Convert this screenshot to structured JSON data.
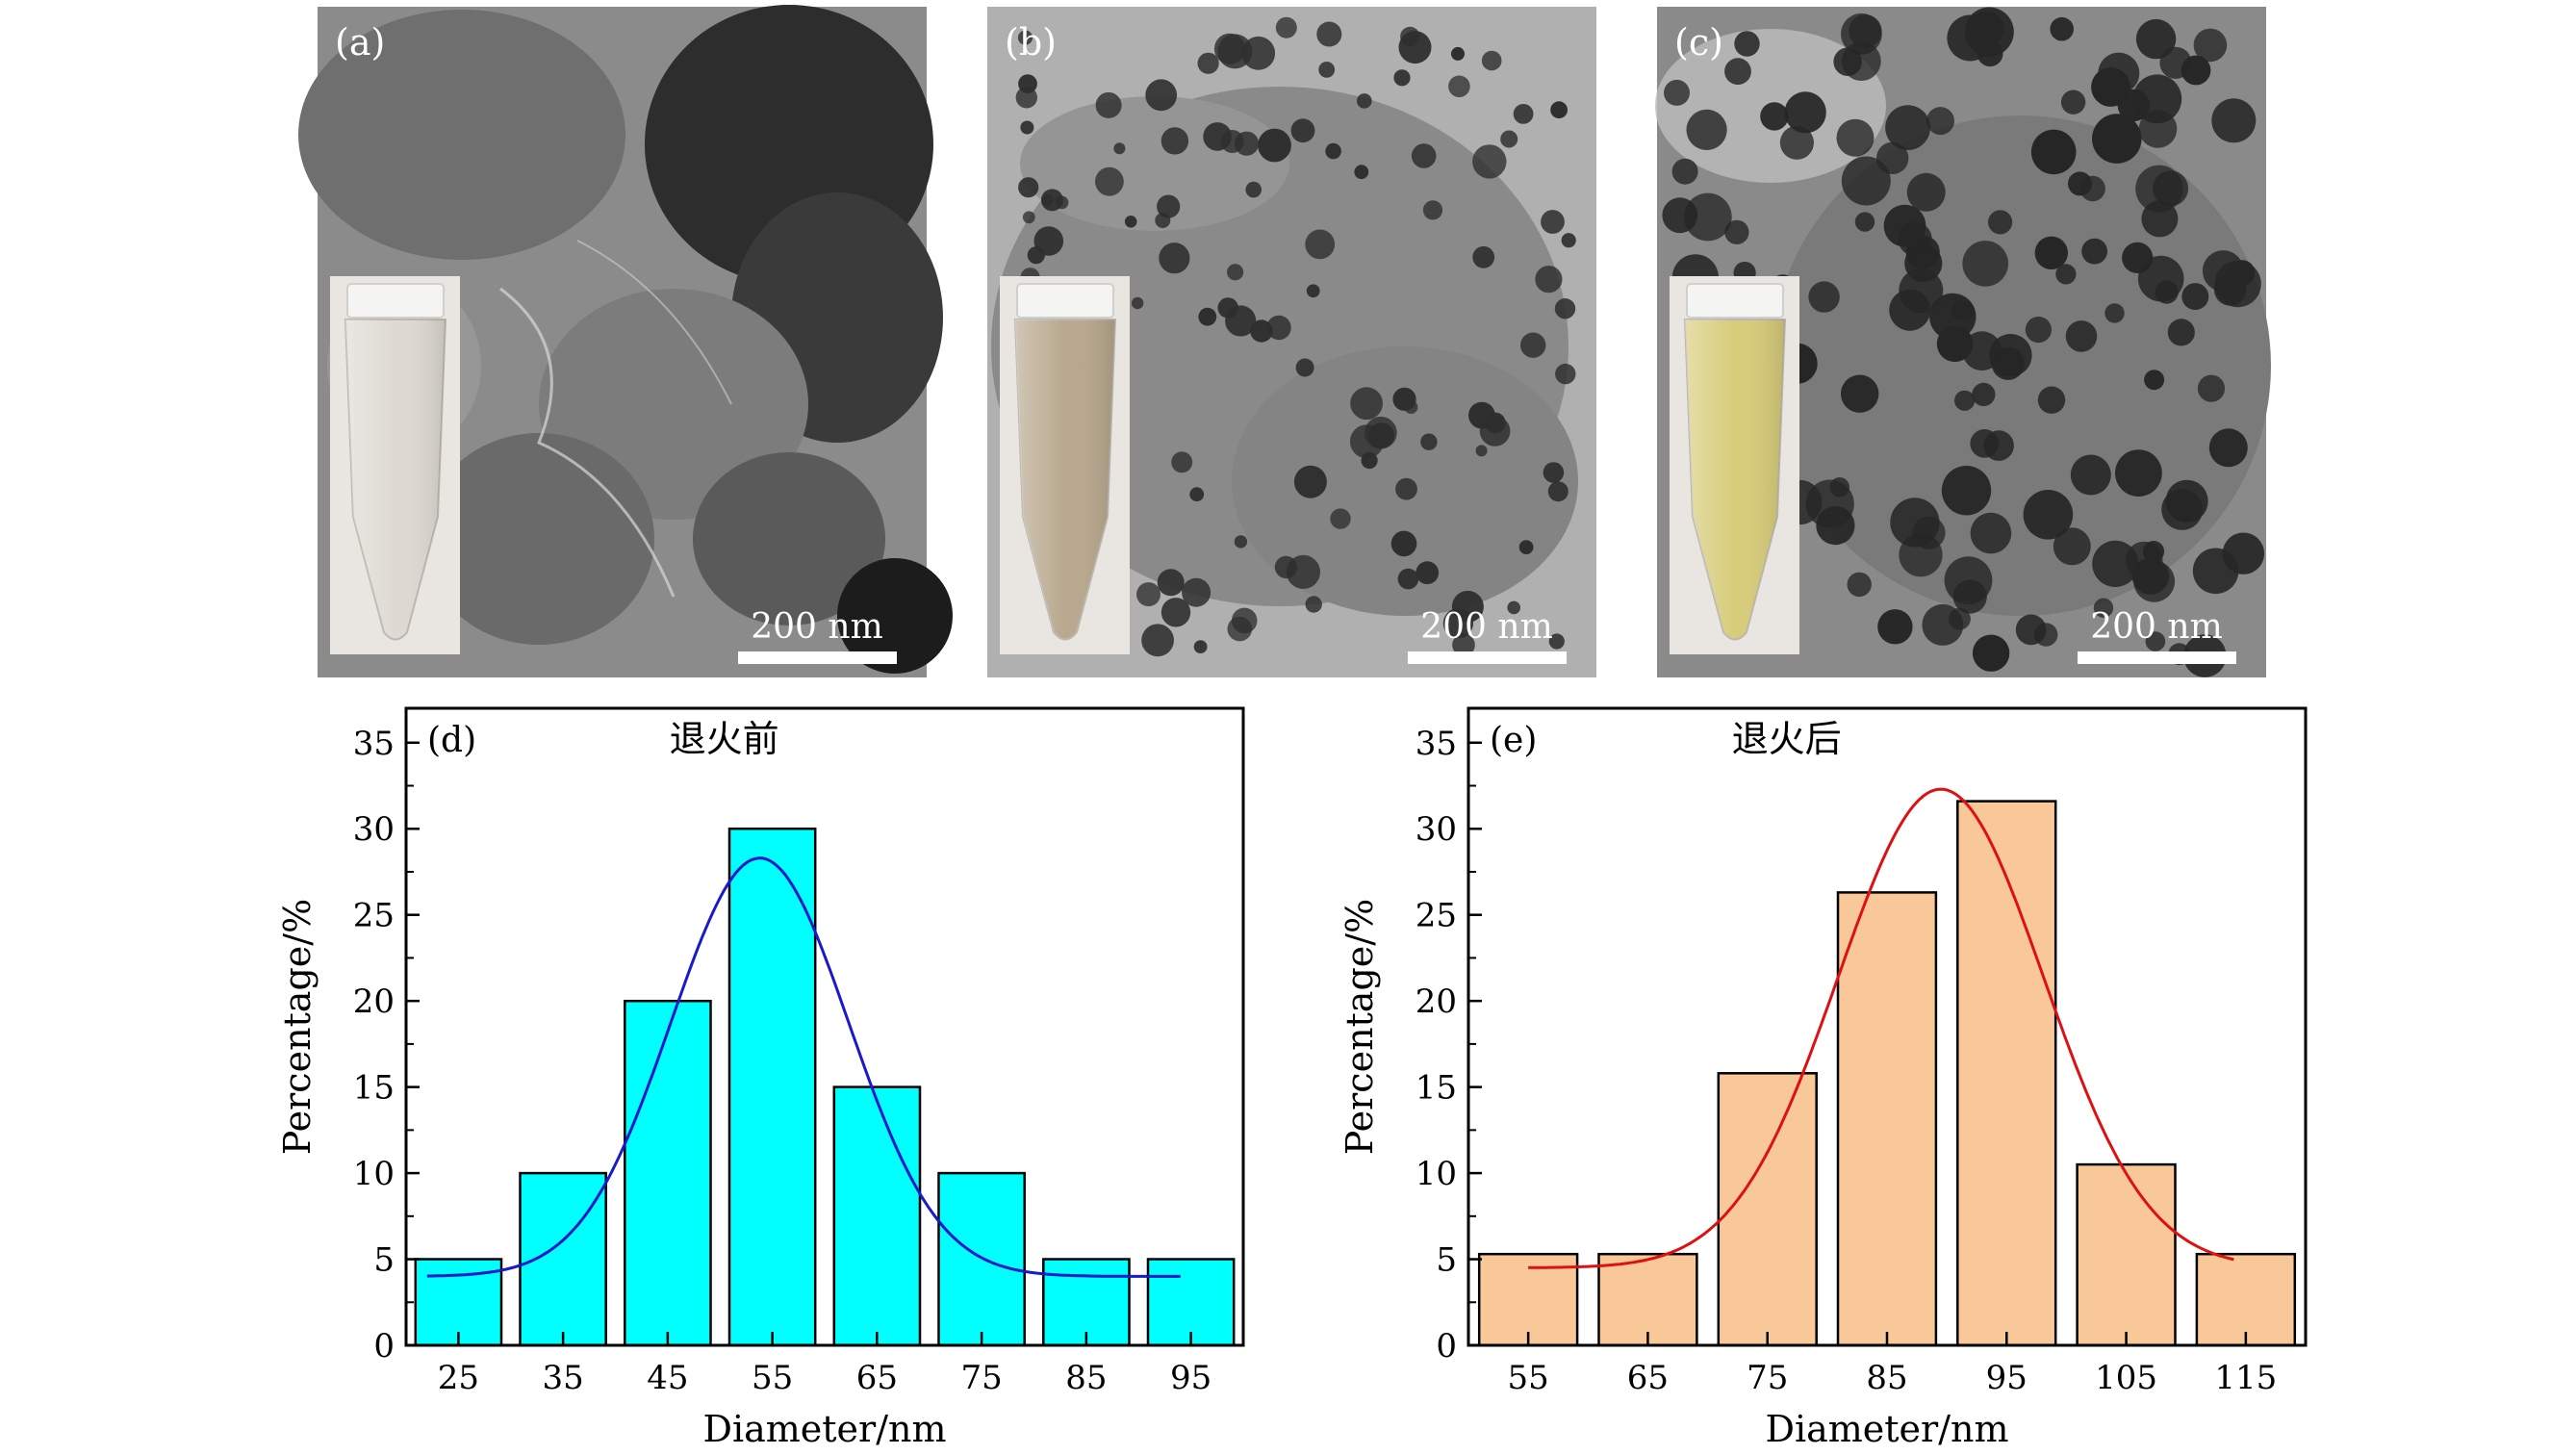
{
  "photos": [
    {
      "label": "(a)",
      "scale_bar": "200 nm",
      "liquid_color": "#dedad3"
    },
    {
      "label": "(b)",
      "scale_bar": "200 nm",
      "liquid_color": "#b8a88e"
    },
    {
      "label": "(c)",
      "scale_bar": "200 nm",
      "liquid_color": "#d7cc7a"
    }
  ],
  "chart_data": [
    {
      "type": "bar",
      "panel_label": "(d)",
      "title": "退火前",
      "xlabel": "Diameter/nm",
      "ylabel": "Percentage/%",
      "categories": [
        "25",
        "35",
        "45",
        "55",
        "65",
        "75",
        "85",
        "95"
      ],
      "values": [
        5,
        10,
        20,
        30,
        15,
        10,
        5,
        5
      ],
      "fit": {
        "type": "gaussian",
        "y0": 4.0,
        "A": 24.3,
        "xc": 53.8,
        "w": 8.5,
        "x_range": [
          22,
          94
        ]
      },
      "ylim": [
        0,
        37
      ],
      "yticks": [
        0,
        5,
        10,
        15,
        20,
        25,
        30,
        35
      ],
      "bar_color": "#00ffff",
      "fit_color": "#1a1acc"
    },
    {
      "type": "bar",
      "panel_label": "(e)",
      "title": "退火后",
      "xlabel": "Diameter/nm",
      "ylabel": "Percentage/%",
      "categories": [
        "55",
        "65",
        "75",
        "85",
        "95",
        "105",
        "115"
      ],
      "values": [
        5.3,
        5.3,
        15.8,
        26.3,
        31.6,
        10.5,
        5.3
      ],
      "fit": {
        "type": "gaussian",
        "y0": 4.5,
        "A": 27.8,
        "xc": 89.5,
        "w": 8.6,
        "x_range": [
          55,
          114
        ]
      },
      "ylim": [
        0,
        37
      ],
      "yticks": [
        0,
        5,
        10,
        15,
        20,
        25,
        30,
        35
      ],
      "bar_color": "#f9c898",
      "fit_color": "#dd1111"
    }
  ]
}
